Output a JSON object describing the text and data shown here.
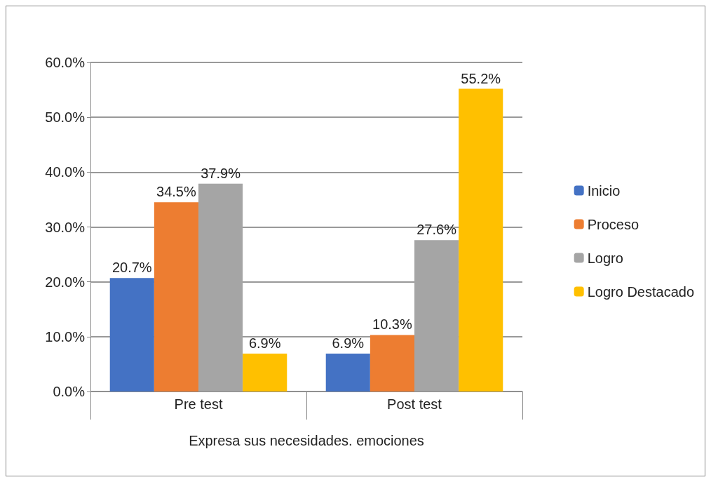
{
  "chart_data": {
    "type": "bar",
    "categories": [
      "Pre test",
      "Post test"
    ],
    "xlabel": "Expresa sus necesidades. emociones",
    "series": [
      {
        "name": "Inicio",
        "color": "#4472c4",
        "values": [
          20.7,
          6.9
        ],
        "value_labels": [
          "20.7%",
          "6.9%"
        ]
      },
      {
        "name": "Proceso",
        "color": "#ed7d31",
        "values": [
          34.5,
          10.3
        ],
        "value_labels": [
          "34.5%",
          "10.3%"
        ]
      },
      {
        "name": "Logro",
        "color": "#a5a5a5",
        "values": [
          37.9,
          27.6
        ],
        "value_labels": [
          "37.9%",
          "27.6%"
        ]
      },
      {
        "name": "Logro Destacado",
        "color": "#ffc000",
        "values": [
          6.9,
          55.2
        ],
        "value_labels": [
          "6.9%",
          "55.2%"
        ]
      }
    ],
    "ylim": [
      0,
      60
    ],
    "yticks": [
      {
        "value": 0,
        "label": "0.0%"
      },
      {
        "value": 10,
        "label": "10.0%"
      },
      {
        "value": 20,
        "label": "20.0%"
      },
      {
        "value": 30,
        "label": "30.0%"
      },
      {
        "value": 40,
        "label": "40.0%"
      },
      {
        "value": 50,
        "label": "50.0%"
      },
      {
        "value": 60,
        "label": "60.0%"
      }
    ],
    "grid": "y",
    "legend": "right"
  }
}
